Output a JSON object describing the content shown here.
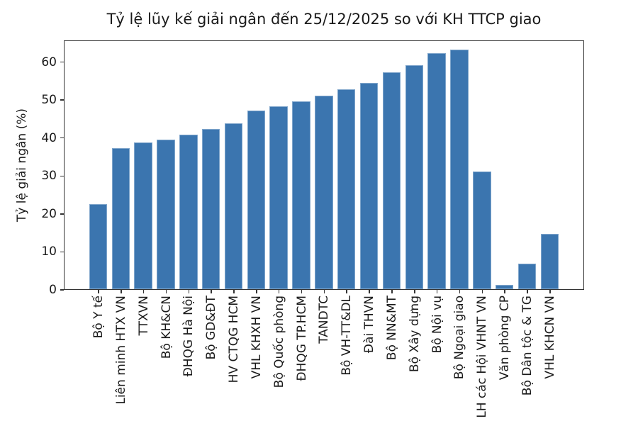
{
  "chart_data": {
    "type": "bar",
    "title": "Tỷ lệ lũy kế giải ngân đến 25/12/2025 so với KH TTCP giao",
    "xlabel": "",
    "ylabel": "Tỷ lệ giải ngân (%)",
    "categories": [
      "Bộ Y tế",
      "Liên minh HTX VN",
      "TTXVN",
      "Bộ KH&CN",
      "ĐHQG Hà Nội",
      "Bộ GD&ĐT",
      "HV CTQG HCM",
      "VHL KHXH VN",
      "Bộ Quốc phòng",
      "ĐHQG TP.HCM",
      "TANDTC",
      "Bộ VH-TT&DL",
      "Đài THVN",
      "Bộ NN&MT",
      "Bộ Xây dựng",
      "Bộ Nội vụ",
      "Bộ Ngoại giao",
      "LH các Hội VHNT VN",
      "Văn phòng CP",
      "Bộ Dân tộc & TG",
      "VHL KHCN VN"
    ],
    "values": [
      22.4,
      37.1,
      38.7,
      39.3,
      40.7,
      42.1,
      43.6,
      47.1,
      48.1,
      49.5,
      50.9,
      52.6,
      54.3,
      57.1,
      59.0,
      62.2,
      63.0,
      31.0,
      1.2,
      6.8,
      14.6
    ],
    "yticks": [
      0,
      10,
      20,
      30,
      40,
      50,
      60
    ],
    "ylim": [
      0,
      65.7
    ],
    "x_tick_rotation": 90,
    "grid": false,
    "legend": null,
    "colors": {
      "bar": "#3b75af",
      "text": "#1a1a1a",
      "spine": "#333333",
      "background": "#ffffff"
    }
  }
}
